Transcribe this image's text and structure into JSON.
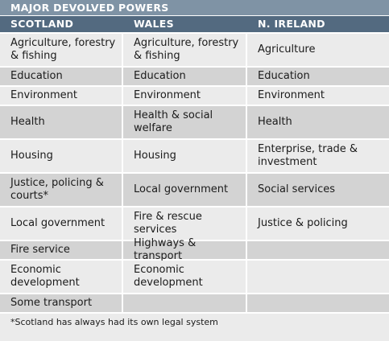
{
  "title": "MAJOR DEVOLVED POWERS",
  "columns": [
    "SCOTLAND",
    "WALES",
    "N. IRELAND"
  ],
  "rows": [
    [
      "Agriculture, forestry & fishing",
      "Agriculture, forestry & fishing",
      "Agriculture"
    ],
    [
      "Education",
      "Education",
      "Education"
    ],
    [
      "Environment",
      "Environment",
      "Environment"
    ],
    [
      "Health",
      "Health & social welfare",
      "Health"
    ],
    [
      "Housing",
      "Housing",
      "Enterprise, trade & investment"
    ],
    [
      "Justice, policing & courts*",
      "Local government",
      "Social services"
    ],
    [
      "Local government",
      "Fire & rescue services",
      "Justice & policing"
    ],
    [
      "Fire service",
      "Highways & transport",
      ""
    ],
    [
      "Economic development",
      "Economic development",
      ""
    ],
    [
      "Some transport",
      "",
      ""
    ]
  ],
  "footnote": "*Scotland has always had its own legal system",
  "colors": {
    "title_bar": "#7f93a5",
    "header_row": "#536a80",
    "light_row": "#ebebeb",
    "dark_row": "#d3d3d3"
  }
}
